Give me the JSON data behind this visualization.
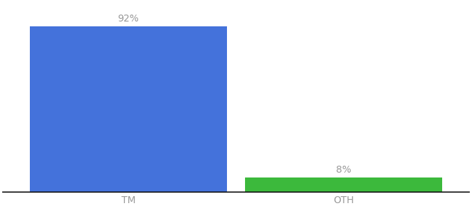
{
  "categories": [
    "TM",
    "OTH"
  ],
  "values": [
    92,
    8
  ],
  "bar_colors": [
    "#4472DB",
    "#3CB93C"
  ],
  "background_color": "#ffffff",
  "ylim": [
    0,
    105
  ],
  "bar_width": 0.55,
  "label_fontsize": 10,
  "tick_fontsize": 10,
  "tick_color": "#999999",
  "label_color": "#999999",
  "x_positions": [
    0.3,
    0.9
  ]
}
